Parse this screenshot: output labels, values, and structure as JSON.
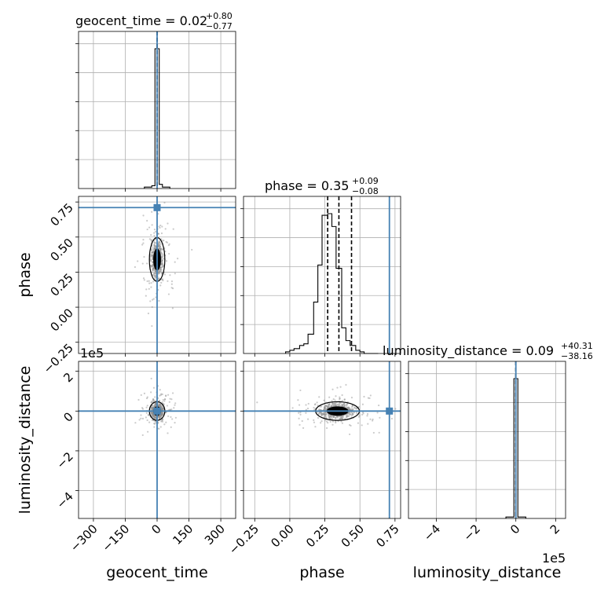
{
  "chart_data": {
    "type": "corner",
    "parameters": [
      "geocent_time",
      "phase",
      "luminosity_distance"
    ],
    "truths": {
      "geocent_time": 0,
      "phase": 0.71,
      "luminosity_distance": 0
    },
    "titles": {
      "geocent_time": {
        "text": "geocent_time = 0.02",
        "plus": "+0.80",
        "minus": "−0.77"
      },
      "phase": {
        "text": "phase = 0.35",
        "plus": "+0.09",
        "minus": "−0.08"
      },
      "luminosity_distance": {
        "text": "luminosity_distance = 0.09",
        "plus": "+40.31",
        "minus": "−38.16"
      }
    },
    "axes": {
      "geocent_time": {
        "lim": [
          -370,
          370
        ],
        "ticks": [
          -300,
          -150,
          0,
          150,
          300
        ],
        "ticklabels": [
          "−300",
          "−150",
          "0",
          "150",
          "300"
        ]
      },
      "phase": {
        "lim": [
          -0.33,
          0.79
        ],
        "ticks": [
          -0.25,
          0,
          0.25,
          0.5,
          0.75
        ],
        "ticklabels": [
          "−0.25",
          "0.00",
          "0.25",
          "0.50",
          "0.75"
        ],
        "xticklabels": [
          "−0.25",
          "0.00",
          "0.25",
          "0.50",
          "0.75"
        ]
      },
      "luminosity_distance": {
        "lim": [
          -5.4,
          2.5
        ],
        "ticks": [
          -4,
          -2,
          0,
          2
        ],
        "ticklabels": [
          "−4",
          "−2",
          "0",
          "2"
        ],
        "offset_text": "1e5"
      }
    },
    "histograms": {
      "geocent_time": {
        "bin_edges": [
          -60,
          -25,
          -10,
          10,
          25,
          60
        ],
        "counts": [
          0.01,
          0.02,
          1.0,
          0.03,
          0.01
        ],
        "quantiles": [
          -0.75,
          0.02,
          0.82
        ]
      },
      "phase": {
        "bin_edges": [
          -0.03,
          0.0,
          0.03,
          0.07,
          0.1,
          0.13,
          0.17,
          0.2,
          0.23,
          0.27,
          0.3,
          0.33,
          0.37,
          0.4,
          0.43,
          0.47,
          0.5,
          0.53,
          0.57,
          0.6,
          0.63
        ],
        "counts": [
          0.01,
          0.02,
          0.03,
          0.05,
          0.06,
          0.12,
          0.32,
          0.55,
          0.86,
          0.87,
          0.79,
          0.53,
          0.16,
          0.08,
          0.05,
          0.02,
          0.01,
          0.0,
          0.0,
          0.0
        ],
        "quantiles": [
          0.27,
          0.35,
          0.44
        ]
      },
      "luminosity_distance": {
        "bin_edges": [
          -0.5,
          -0.1,
          0.1,
          0.5
        ],
        "counts": [
          0.01,
          1.0,
          0.01
        ],
        "quantiles": [
          -0.0004,
          0.0,
          0.0004
        ]
      }
    },
    "samples_center": {
      "geocent_time": 0,
      "phase": 0.34,
      "luminosity_distance": 0
    },
    "grid": true
  }
}
